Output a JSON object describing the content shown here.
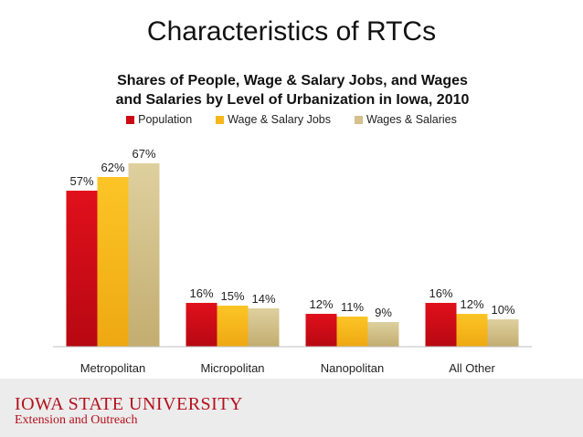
{
  "slide": {
    "title": "Characteristics of RTCs"
  },
  "colors": {
    "population": "#cc0a16",
    "wage_salary_jobs": "#f5b81c",
    "wages_salaries": "#d3c08a",
    "brand": "#b3101c"
  },
  "chart_data": {
    "type": "bar",
    "title": "Shares of People, Wage & Salary Jobs, and Wages and Salaries by Level of Urbanization in Iowa, 2010",
    "title_line1": "Shares of People, Wage & Salary Jobs, and Wages",
    "title_line2": "and Salaries by Level of Urbanization in Iowa, 2010",
    "xlabel": "",
    "ylabel": "",
    "ylim": [
      0,
      70
    ],
    "grid": false,
    "legend_position": "top",
    "categories": [
      "Metropolitan",
      "Micropolitan",
      "Nanopolitan",
      "All Other"
    ],
    "series": [
      {
        "name": "Population",
        "values": [
          57,
          16,
          12,
          16
        ],
        "labels": [
          "57%",
          "16%",
          "12%",
          "16%"
        ]
      },
      {
        "name": "Wage & Salary Jobs",
        "values": [
          62,
          15,
          11,
          12
        ],
        "labels": [
          "62%",
          "15%",
          "11%",
          "12%"
        ]
      },
      {
        "name": "Wages & Salaries",
        "values": [
          67,
          14,
          9,
          10
        ],
        "labels": [
          "67%",
          "14%",
          "9%",
          "10%"
        ]
      }
    ]
  },
  "footer": {
    "logo_line1": "IOWA STATE UNIVERSITY",
    "logo_line2": "Extension and Outreach"
  }
}
